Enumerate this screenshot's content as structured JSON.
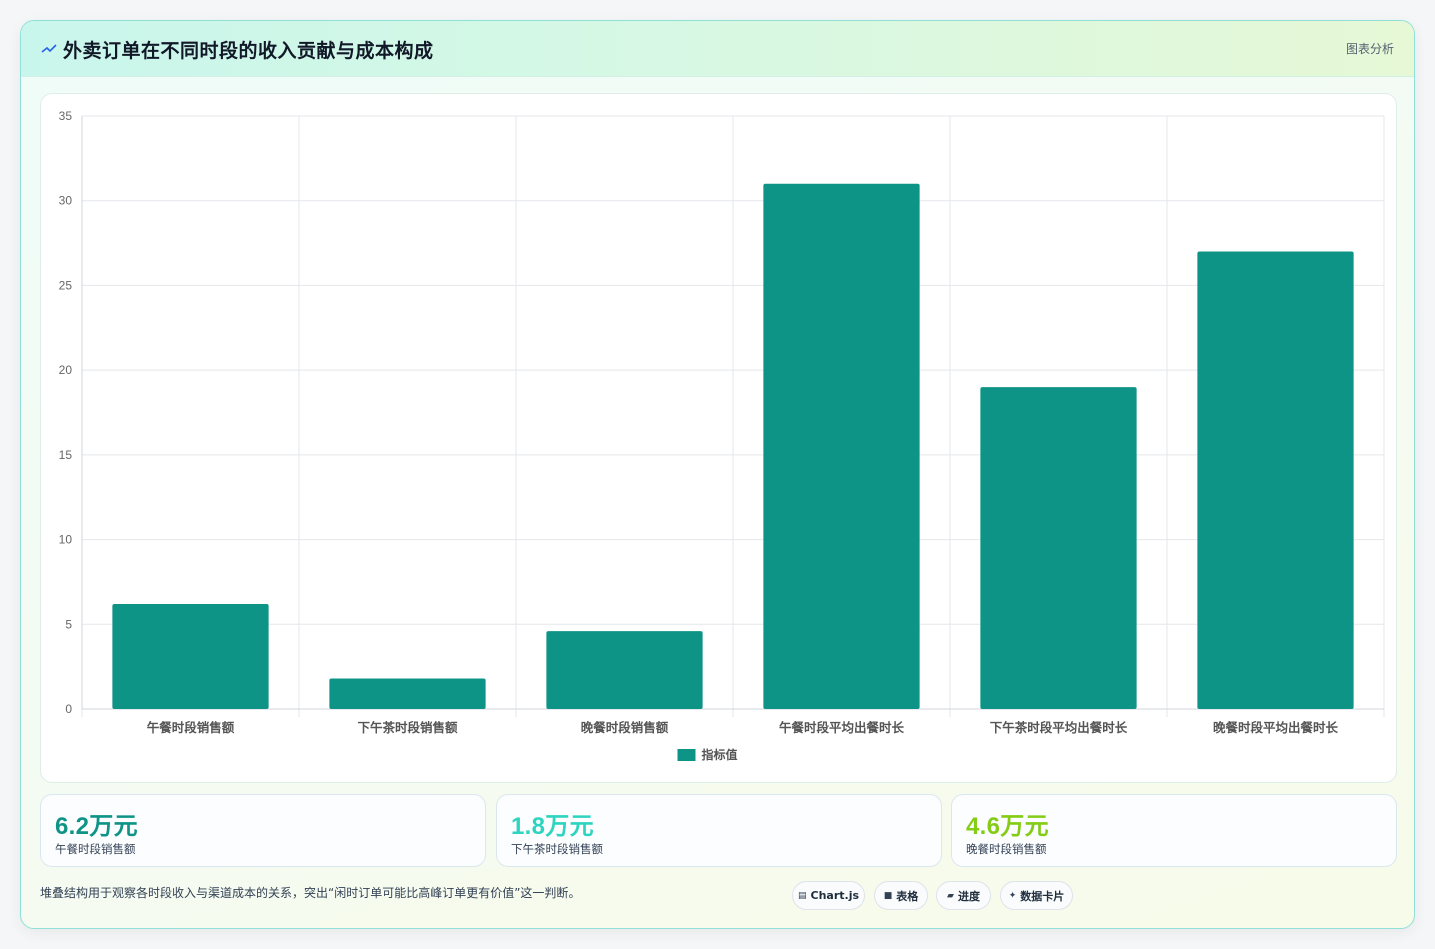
{
  "header": {
    "title": "外卖订单在不同时段的收入贡献与成本构成",
    "tag": "图表分析"
  },
  "chart_data": {
    "type": "bar",
    "categories": [
      "午餐时段销售额",
      "下午茶时段销售额",
      "晚餐时段销售额",
      "午餐时段平均出餐时长",
      "下午茶时段平均出餐时长",
      "晚餐时段平均出餐时长"
    ],
    "series": [
      {
        "name": "指标值",
        "values": [
          6.2,
          1.8,
          4.6,
          31,
          19,
          27
        ],
        "color": "#0e9486"
      }
    ],
    "yticks": [
      0,
      5,
      10,
      15,
      20,
      25,
      30,
      35
    ],
    "ylim": [
      0,
      35
    ],
    "grid": true,
    "legend": "bottom-center"
  },
  "stats": [
    {
      "value": "6.2万元",
      "label": "午餐时段销售额",
      "color": "#0e9486"
    },
    {
      "value": "1.8万元",
      "label": "下午茶时段销售额",
      "color": "#2dd4bf"
    },
    {
      "value": "4.6万元",
      "label": "晚餐时段销售额",
      "color": "#84cc16"
    }
  ],
  "note": "堆叠结构用于观察各时段收入与渠道成本的关系，突出“闲时订单可能比高峰订单更有价值”这一判断。",
  "chips": [
    {
      "icon": "chart-icon",
      "label": "Chart.js"
    },
    {
      "icon": "table-icon",
      "label": "表格"
    },
    {
      "icon": "progress-icon",
      "label": "进度"
    },
    {
      "icon": "card-icon",
      "label": "数据卡片"
    }
  ]
}
